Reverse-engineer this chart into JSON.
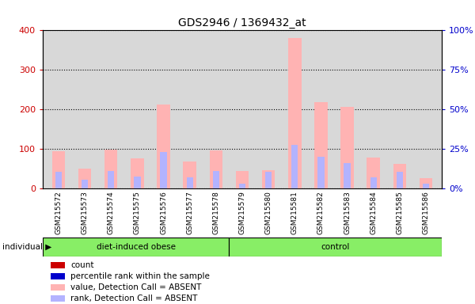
{
  "title": "GDS2946 / 1369432_at",
  "samples": [
    "GSM215572",
    "GSM215573",
    "GSM215574",
    "GSM215575",
    "GSM215576",
    "GSM215577",
    "GSM215578",
    "GSM215579",
    "GSM215580",
    "GSM215581",
    "GSM215582",
    "GSM215583",
    "GSM215584",
    "GSM215585",
    "GSM215586"
  ],
  "n_diet": 7,
  "n_control": 8,
  "value_absent": [
    95,
    50,
    98,
    76,
    213,
    68,
    97,
    44,
    47,
    380,
    218,
    207,
    78,
    62,
    27
  ],
  "rank_absent": [
    43,
    22,
    44,
    30,
    92,
    28,
    45,
    12,
    43,
    110,
    80,
    65,
    28,
    43,
    12
  ],
  "ylim_left": [
    0,
    400
  ],
  "ylim_right": [
    0,
    100
  ],
  "yticks_left": [
    0,
    100,
    200,
    300,
    400
  ],
  "yticks_right": [
    0,
    25,
    50,
    75,
    100
  ],
  "ytick_labels_right": [
    "0",
    "25",
    "50",
    "75",
    "100"
  ],
  "right_axis_label_100": "100%",
  "right_axis_label_0": "0%",
  "background_color": "#ffffff",
  "plot_bg_color": "#d8d8d8",
  "color_value_absent": "#ffb3b3",
  "color_rank_absent": "#b3b3ff",
  "color_count": "#cc0000",
  "color_percentile": "#0000cc",
  "group_color": "#88ee66",
  "individual_label": "individual",
  "group_label_diet": "diet-induced obese",
  "group_label_control": "control",
  "legend_items": [
    {
      "label": "count",
      "color": "#cc0000"
    },
    {
      "label": "percentile rank within the sample",
      "color": "#0000cc"
    },
    {
      "label": "value, Detection Call = ABSENT",
      "color": "#ffb3b3"
    },
    {
      "label": "rank, Detection Call = ABSENT",
      "color": "#b3b3ff"
    }
  ]
}
